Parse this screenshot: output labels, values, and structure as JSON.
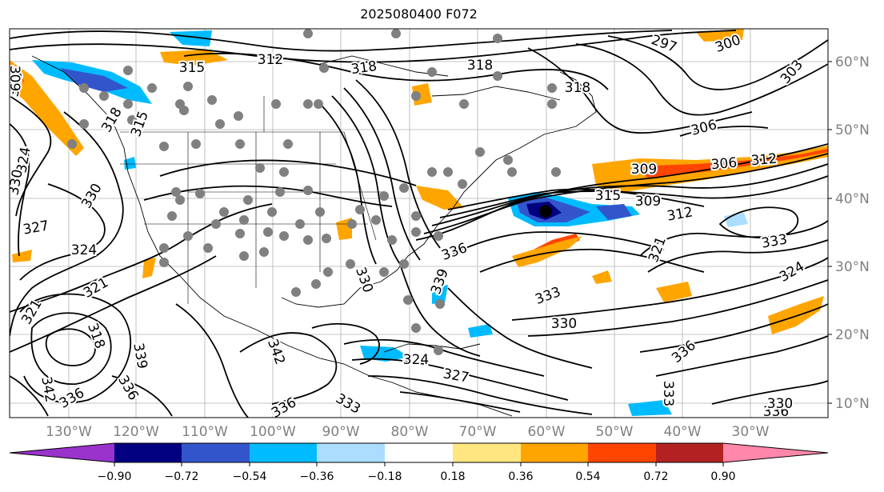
{
  "title": "2025080400 F072",
  "lon_ticks": [
    "130°W",
    "120°W",
    "110°W",
    "100°W",
    "90°W",
    "80°W",
    "70°W",
    "60°W",
    "50°W",
    "40°W",
    "30°W"
  ],
  "lat_ticks": [
    "60°N",
    "50°N",
    "40°N",
    "30°N",
    "20°N",
    "10°N"
  ],
  "colorbar": {
    "ticks": [
      "−0.90",
      "−0.72",
      "−0.54",
      "−0.36",
      "−0.18",
      "0.18",
      "0.36",
      "0.54",
      "0.72",
      "0.90"
    ],
    "colors": [
      "#9933cc",
      "#000080",
      "#3355cc",
      "#00bbff",
      "#aaddff",
      "#ffffff",
      "#ffe680",
      "#ffa500",
      "#ff4500",
      "#b22222",
      "#ff88aa"
    ]
  },
  "contour_labels": [
    "315",
    "312",
    "318",
    "318",
    "318",
    "300",
    "303",
    "297",
    "306",
    "309",
    "306",
    "312",
    "315",
    "309",
    "312",
    "321",
    "333",
    "324",
    "321",
    "315",
    "318",
    "324",
    "330",
    "330",
    "327",
    "324",
    "321",
    "318",
    "336",
    "330",
    "339",
    "333",
    "330",
    "327",
    "324",
    "342",
    "336",
    "333",
    "339",
    "336",
    "342",
    "336",
    "333",
    "336",
    "330",
    "336",
    "309",
    "315"
  ],
  "colors": {
    "axes": "#808080",
    "contour": "#000000",
    "station": "#808080"
  }
}
